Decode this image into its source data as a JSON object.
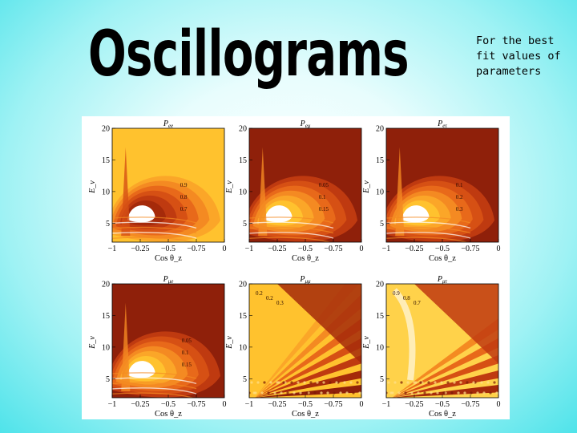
{
  "slide": {
    "title": "Oscillograms",
    "note": "For the best fit values of parameters"
  },
  "colors": {
    "background_edge": "#4fe3ea",
    "background_center": "#ffffff",
    "contour_low": "#a52a0a",
    "contour_mid": "#e8691a",
    "contour_high": "#ffc22e",
    "contour_peak": "#ffffff"
  },
  "chart_data": [
    {
      "type": "heatmap",
      "title": "P_ee",
      "xlabel": "Cos θ_z",
      "ylabel": "E_ν",
      "xlim": [
        -1,
        0
      ],
      "ylim": [
        2,
        20
      ],
      "x_ticks": [
        "-1",
        "-0.25",
        "-0.5",
        "-0.75",
        "0"
      ],
      "y_ticks": [
        "5",
        "10",
        "15",
        "20"
      ],
      "contour_labels": [
        "0.9",
        "0.8",
        "0.7"
      ]
    },
    {
      "type": "heatmap",
      "title": "P_eμ",
      "xlabel": "Cos θ_z",
      "ylabel": "E_ν",
      "xlim": [
        -1,
        0
      ],
      "ylim": [
        2,
        20
      ],
      "x_ticks": [
        "-1",
        "-0.25",
        "-0.5",
        "-0.75",
        "0"
      ],
      "y_ticks": [
        "5",
        "10",
        "15",
        "20"
      ],
      "contour_labels": [
        "0.05",
        "0.1",
        "0.15"
      ]
    },
    {
      "type": "heatmap",
      "title": "P_eτ",
      "xlabel": "Cos θ_z",
      "ylabel": "E_ν",
      "xlim": [
        -1,
        0
      ],
      "ylim": [
        2,
        20
      ],
      "x_ticks": [
        "-1",
        "-0.25",
        "-0.5",
        "-0.75",
        "0"
      ],
      "y_ticks": [
        "5",
        "10",
        "15",
        "20"
      ],
      "contour_labels": [
        "0.1",
        "0.2",
        "0.3"
      ]
    },
    {
      "type": "heatmap",
      "title": "P_μe",
      "xlabel": "Cos θ_z",
      "ylabel": "E_ν",
      "xlim": [
        -1,
        0
      ],
      "ylim": [
        2,
        20
      ],
      "x_ticks": [
        "-1",
        "-0.25",
        "-0.5",
        "-0.75",
        "0"
      ],
      "y_ticks": [
        "5",
        "10",
        "15",
        "20"
      ],
      "contour_labels": [
        "0.05",
        "0.1",
        "0.15"
      ]
    },
    {
      "type": "heatmap",
      "title": "P_μμ",
      "xlabel": "Cos θ_z",
      "ylabel": "E_ν",
      "xlim": [
        -1,
        0
      ],
      "ylim": [
        2,
        20
      ],
      "x_ticks": [
        "-1",
        "-0.25",
        "-0.5",
        "-0.75",
        "0"
      ],
      "y_ticks": [
        "5",
        "10",
        "15",
        "20"
      ],
      "contour_labels": [
        "0.2",
        "0.2",
        "0.3"
      ]
    },
    {
      "type": "heatmap",
      "title": "P_μτ",
      "xlabel": "Cos θ_z",
      "ylabel": "E_ν",
      "xlim": [
        -1,
        0
      ],
      "ylim": [
        2,
        20
      ],
      "x_ticks": [
        "-1",
        "-0.25",
        "-0.5",
        "-0.75",
        "0"
      ],
      "y_ticks": [
        "5",
        "10",
        "15",
        "20"
      ],
      "contour_labels": [
        "0.9",
        "0.8",
        "0.7"
      ]
    }
  ]
}
